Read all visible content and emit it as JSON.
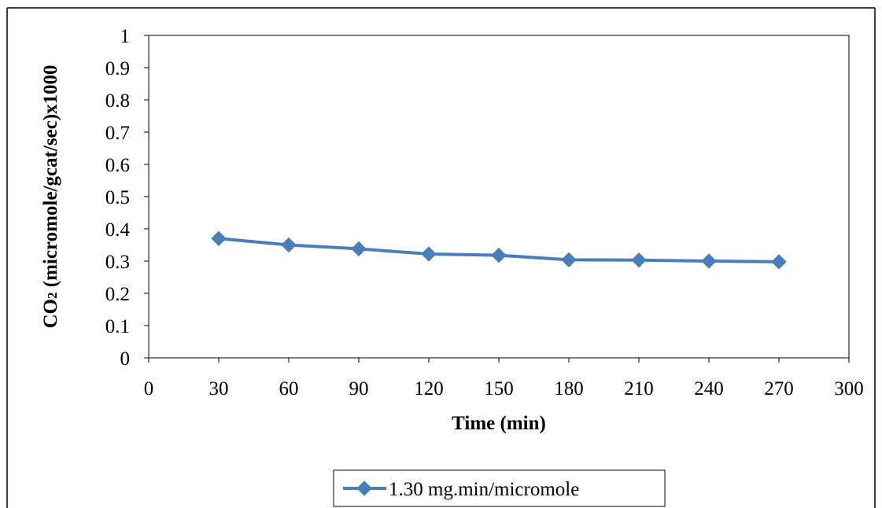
{
  "chart_data": {
    "type": "line",
    "title": "",
    "xlabel": "Time (min)",
    "ylabel_parts": [
      "CO",
      "2",
      " (micromole/gcat/sec)x1000"
    ],
    "x_ticks": [
      0,
      30,
      60,
      90,
      120,
      150,
      180,
      210,
      240,
      270,
      300
    ],
    "y_ticks": [
      0,
      0.1,
      0.2,
      0.3,
      0.4,
      0.5,
      0.6,
      0.7,
      0.8,
      0.9,
      1
    ],
    "xlim": [
      0,
      300
    ],
    "ylim": [
      0,
      1
    ],
    "grid": false,
    "legend_position": "bottom",
    "series": [
      {
        "name": "1.30 mg.min/micromole",
        "color": "#4a7ebb",
        "marker": "diamond",
        "x": [
          30,
          60,
          90,
          120,
          150,
          180,
          210,
          240,
          270
        ],
        "y": [
          0.37,
          0.35,
          0.338,
          0.322,
          0.318,
          0.304,
          0.303,
          0.3,
          0.298
        ]
      }
    ]
  }
}
